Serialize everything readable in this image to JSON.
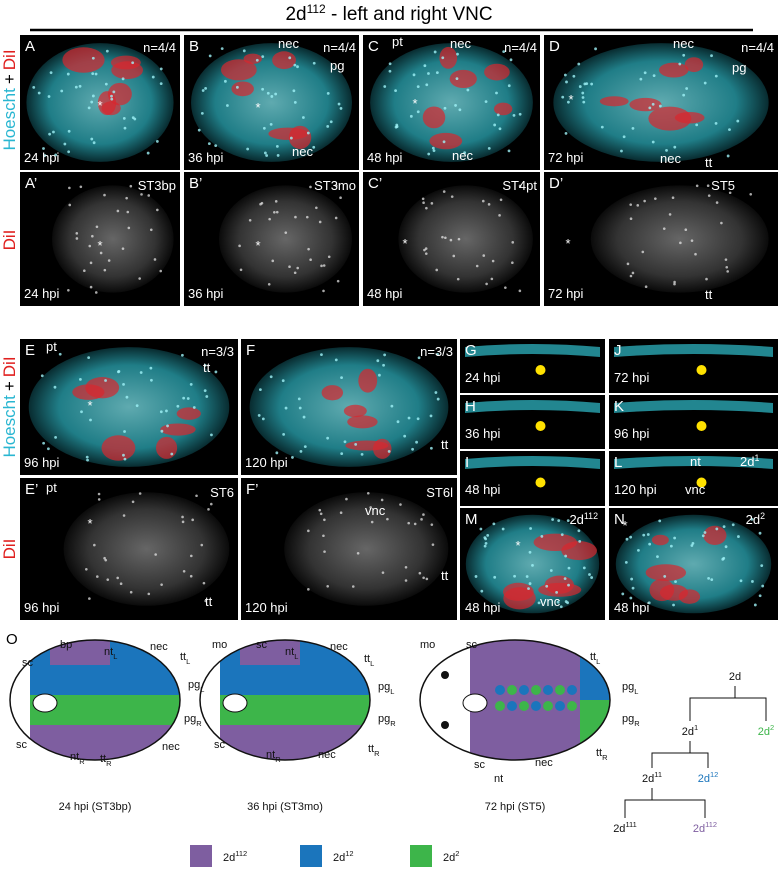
{
  "title": {
    "text": "2d",
    "sup": "112",
    "rest": " - left and right VNC"
  },
  "side_labels": [
    {
      "a": "Hoescht",
      "b": "+",
      "c": "DiI"
    },
    {
      "c": "DiI"
    },
    {
      "a": "Hoescht",
      "b": "+",
      "c": "DiI"
    },
    {
      "c": "DiI"
    }
  ],
  "panels": [
    {
      "label": "A",
      "texts": [
        "n=4/4",
        "24 hpi",
        "*"
      ]
    },
    {
      "label": "B",
      "texts": [
        "nec",
        "n=4/4",
        "pg",
        "*",
        "nec",
        "36 hpi"
      ]
    },
    {
      "label": "C",
      "texts": [
        "pt",
        "nec",
        "n=4/4",
        "*",
        "nec",
        "48 hpi"
      ]
    },
    {
      "label": "D",
      "texts": [
        "nec",
        "n=4/4",
        "pg",
        "*",
        "nec",
        "tt",
        "72 hpi"
      ]
    },
    {
      "label": "A’",
      "texts": [
        "ST3bp",
        "*",
        "24 hpi"
      ]
    },
    {
      "label": "B’",
      "texts": [
        "ST3mo",
        "*",
        "36 hpi"
      ]
    },
    {
      "label": "C’",
      "texts": [
        "ST4pt",
        "*",
        "48 hpi"
      ]
    },
    {
      "label": "D’",
      "texts": [
        "ST5",
        "*",
        "tt",
        "72 hpi"
      ]
    },
    {
      "label": "E",
      "texts": [
        "pt",
        "n=3/3",
        "tt",
        "*",
        "96 hpi"
      ]
    },
    {
      "label": "F",
      "texts": [
        "n=3/3",
        "tt",
        "120 hpi"
      ]
    },
    {
      "label": "G",
      "texts": [
        "24 hpi"
      ]
    },
    {
      "label": "H",
      "texts": [
        "36 hpi"
      ]
    },
    {
      "label": "I",
      "texts": [
        "48 hpi"
      ]
    },
    {
      "label": "J",
      "texts": [
        "72 hpi"
      ]
    },
    {
      "label": "K",
      "texts": [
        "96 hpi"
      ]
    },
    {
      "label": "L",
      "texts": [
        "nt",
        {
          "text": "2d",
          "sup": "1"
        },
        "vnc",
        "120 hpi"
      ]
    },
    {
      "label": "E’",
      "texts": [
        "pt",
        "ST6",
        "*",
        "tt",
        "96 hpi"
      ]
    },
    {
      "label": "F’",
      "texts": [
        "ST6l",
        "vnc",
        "tt",
        "120 hpi"
      ]
    },
    {
      "label": "M",
      "texts": [
        {
          "text": "2d",
          "sup": "112"
        },
        "*",
        "vnc",
        "48 hpi"
      ]
    },
    {
      "label": "N",
      "texts": [
        {
          "text": "2d",
          "sup": "2"
        },
        "*",
        "48 hpi"
      ]
    }
  ],
  "schematic": {
    "label": "O",
    "diagrams": [
      {
        "caption": "24 hpi (ST3bp)",
        "labels": [
          "sc",
          "bp",
          {
            "text": "nt",
            "sub": "L"
          },
          "nec",
          {
            "text": "tt",
            "sub": "L"
          },
          {
            "text": "pg",
            "sub": "L"
          },
          {
            "text": "pg",
            "sub": "R"
          },
          "sc",
          {
            "text": "nt",
            "sub": "R"
          },
          {
            "text": "tt",
            "sub": "R"
          },
          "nec"
        ]
      },
      {
        "caption": "36 hpi (ST3mo)",
        "labels": [
          "mo",
          "sc",
          {
            "text": "nt",
            "sub": "L"
          },
          "nec",
          {
            "text": "tt",
            "sub": "L"
          },
          {
            "text": "pg",
            "sub": "L"
          },
          {
            "text": "pg",
            "sub": "R"
          },
          "sc",
          {
            "text": "nt",
            "sub": "R"
          },
          "nec",
          {
            "text": "tt",
            "sub": "R"
          }
        ]
      },
      {
        "caption": "72 hpi (ST5)",
        "labels": [
          "mo",
          "sc",
          {
            "text": "tt",
            "sub": "L"
          },
          {
            "text": "pg",
            "sub": "L"
          },
          {
            "text": "pg",
            "sub": "R"
          },
          {
            "text": "tt",
            "sub": "R"
          },
          "nec",
          "nt",
          "sc"
        ]
      }
    ],
    "tree": [
      {
        "text": "2d"
      },
      {
        "text": "2d",
        "sup": "1"
      },
      {
        "text": "2d",
        "sup": "2",
        "color": "#3db54a"
      },
      {
        "text": "2d",
        "sup": "11"
      },
      {
        "text": "2d",
        "sup": "12",
        "color": "#1b75bc"
      },
      {
        "text": "2d",
        "sup": "111"
      },
      {
        "text": "2d",
        "sup": "112",
        "color": "#7e5ea0"
      }
    ],
    "legend": [
      {
        "text": "2d",
        "sup": "112",
        "color": "#7e5ea0"
      },
      {
        "text": "2d",
        "sup": "12",
        "color": "#1b75bc"
      },
      {
        "text": "2d",
        "sup": "2",
        "color": "#3db54a"
      }
    ]
  }
}
